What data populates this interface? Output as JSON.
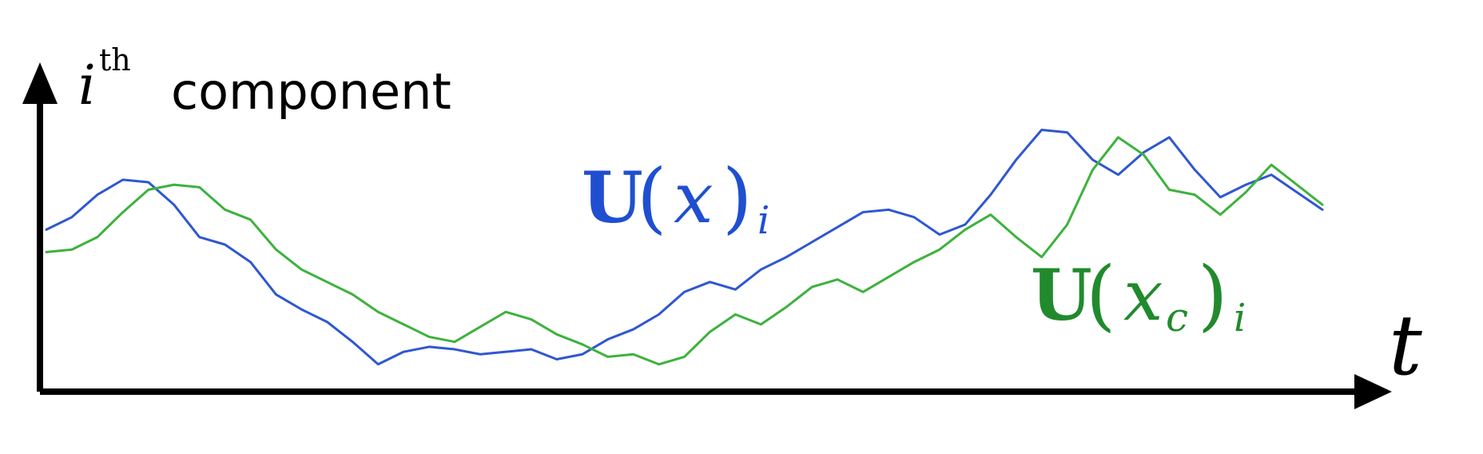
{
  "chart_data": {
    "type": "line",
    "ylabel": {
      "math": "i",
      "superscript": "th",
      "text": "component"
    },
    "xlabel": "t",
    "grid": false,
    "legend": "inline labels near traces",
    "series": [
      {
        "name_parts": {
          "main": "U",
          "open": "(",
          "var": "x",
          "close": ")",
          "sub": "i"
        },
        "color": "#2f57d1",
        "x": [
          0,
          0.02,
          0.04,
          0.06,
          0.08,
          0.1,
          0.12,
          0.14,
          0.16,
          0.18,
          0.2,
          0.22,
          0.24,
          0.26,
          0.28,
          0.3,
          0.32,
          0.34,
          0.36,
          0.38,
          0.4,
          0.42,
          0.44,
          0.46,
          0.48,
          0.5,
          0.52,
          0.54,
          0.56,
          0.58,
          0.6,
          0.62,
          0.64,
          0.66,
          0.68,
          0.7,
          0.72,
          0.74,
          0.76,
          0.78,
          0.8,
          0.82,
          0.84,
          0.86,
          0.88,
          0.9,
          0.92,
          0.94,
          0.96,
          0.98,
          1.0
        ],
        "y": [
          0.56,
          0.61,
          0.7,
          0.76,
          0.75,
          0.66,
          0.53,
          0.5,
          0.43,
          0.3,
          0.24,
          0.19,
          0.11,
          0.02,
          0.07,
          0.09,
          0.08,
          0.06,
          0.07,
          0.08,
          0.04,
          0.06,
          0.12,
          0.16,
          0.22,
          0.31,
          0.35,
          0.32,
          0.4,
          0.45,
          0.51,
          0.57,
          0.63,
          0.64,
          0.61,
          0.54,
          0.58,
          0.7,
          0.84,
          0.96,
          0.95,
          0.84,
          0.78,
          0.87,
          0.93,
          0.8,
          0.69,
          0.74,
          0.78,
          0.71,
          0.64
        ]
      },
      {
        "name_parts": {
          "main": "U",
          "open": "(",
          "var": "x",
          "varsub": "c",
          "close": ")",
          "sub": "i"
        },
        "color": "#3db23d",
        "x": [
          0,
          0.02,
          0.04,
          0.06,
          0.08,
          0.1,
          0.12,
          0.14,
          0.16,
          0.18,
          0.2,
          0.22,
          0.24,
          0.26,
          0.28,
          0.3,
          0.32,
          0.34,
          0.36,
          0.38,
          0.4,
          0.42,
          0.44,
          0.46,
          0.48,
          0.5,
          0.52,
          0.54,
          0.56,
          0.58,
          0.6,
          0.62,
          0.64,
          0.66,
          0.68,
          0.7,
          0.72,
          0.74,
          0.76,
          0.78,
          0.8,
          0.82,
          0.84,
          0.86,
          0.88,
          0.9,
          0.92,
          0.94,
          0.96,
          0.98,
          1.0
        ],
        "y": [
          0.47,
          0.48,
          0.53,
          0.63,
          0.72,
          0.74,
          0.73,
          0.64,
          0.6,
          0.48,
          0.4,
          0.35,
          0.3,
          0.23,
          0.18,
          0.13,
          0.11,
          0.17,
          0.23,
          0.2,
          0.14,
          0.1,
          0.05,
          0.06,
          0.02,
          0.05,
          0.15,
          0.22,
          0.18,
          0.25,
          0.33,
          0.36,
          0.31,
          0.37,
          0.43,
          0.48,
          0.56,
          0.62,
          0.53,
          0.45,
          0.58,
          0.8,
          0.93,
          0.86,
          0.72,
          0.7,
          0.62,
          0.71,
          0.82,
          0.74,
          0.66
        ]
      }
    ]
  }
}
